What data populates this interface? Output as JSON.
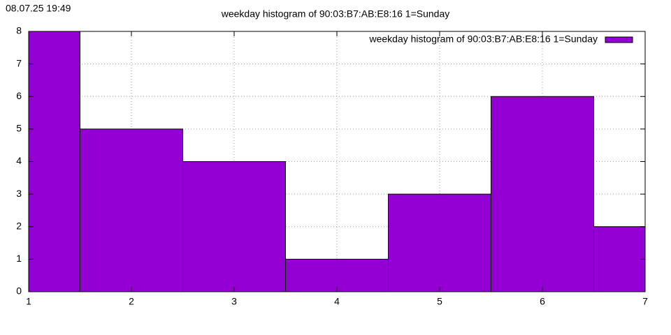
{
  "chart_data": {
    "type": "bar",
    "timestamp": "08.07.25 19:49",
    "title": "weekday histogram of 90:03:B7:AB:E8:16 1=Sunday",
    "x": [
      1,
      2,
      3,
      4,
      5,
      6,
      7
    ],
    "series": [
      {
        "name": "weekday histogram of 90:03:B7:AB:E8:16 1=Sunday",
        "color": "#9400d3",
        "values": [
          8,
          5,
          4,
          1,
          3,
          6,
          2
        ]
      }
    ],
    "bar_width": 1,
    "xlim": [
      1,
      7
    ],
    "xticks": [
      1,
      2,
      3,
      4,
      5,
      6,
      7
    ],
    "ylim": [
      0,
      8
    ],
    "yticks": [
      0,
      1,
      2,
      3,
      4,
      5,
      6,
      7,
      8
    ],
    "grid": true,
    "legend": "top-right"
  }
}
